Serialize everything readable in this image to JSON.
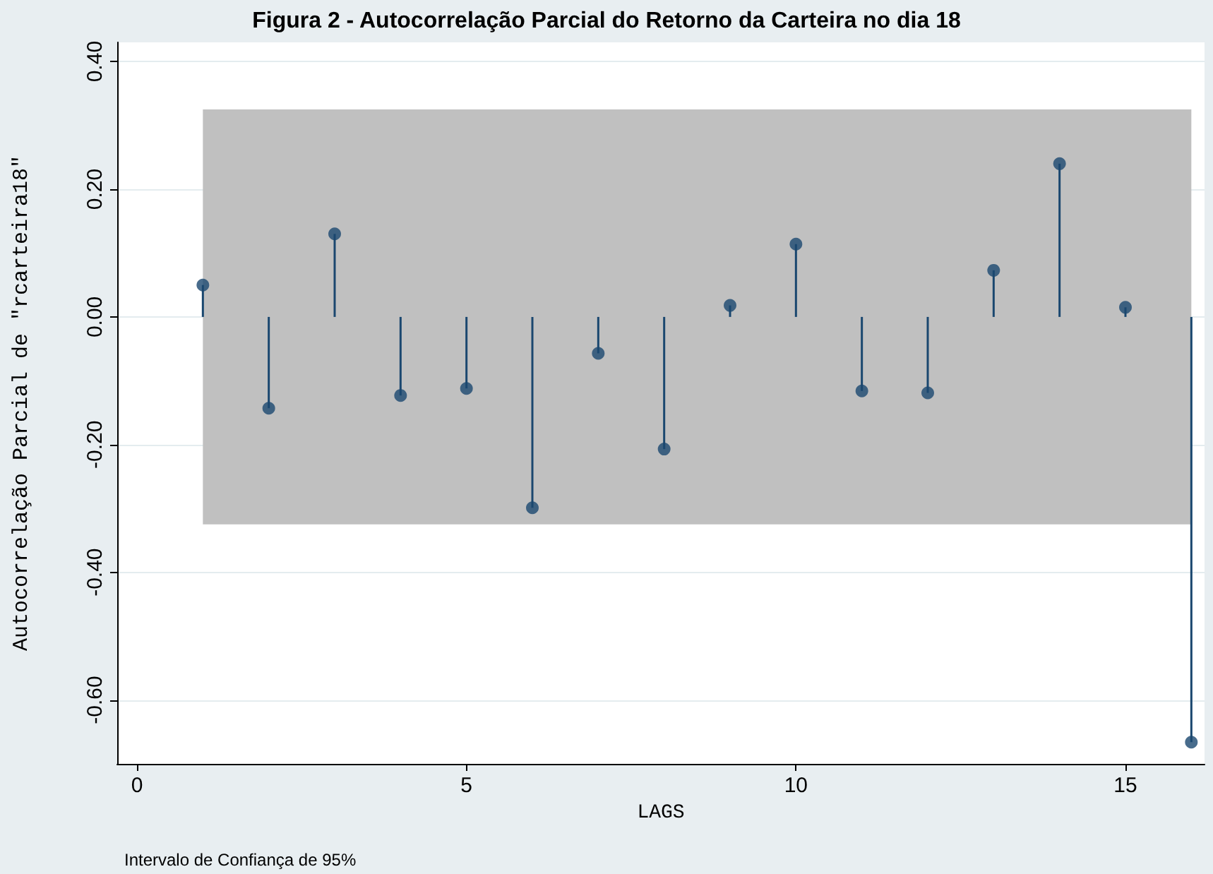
{
  "chart_data": {
    "type": "lollipop",
    "title": "Figura 2 - Autocorrelação Parcial do Retorno da Carteira no dia 18",
    "xlabel": "LAGS",
    "ylabel": "Autocorrelação Parcial de \"rcarteira18\"",
    "annotations": [
      "Intervalo de Confiança de 95%"
    ],
    "x": [
      1,
      2,
      3,
      4,
      5,
      6,
      7,
      8,
      9,
      10,
      11,
      12,
      13,
      14,
      15,
      16
    ],
    "series": [
      {
        "color": "#1a476f",
        "values": [
          0.05,
          -0.143,
          0.13,
          -0.123,
          -0.112,
          -0.299,
          -0.057,
          -0.207,
          0.018,
          0.114,
          -0.116,
          -0.119,
          0.073,
          0.24,
          0.015,
          -0.666
        ]
      }
    ],
    "bands": [
      {
        "axis": "y",
        "from": -0.325,
        "to": 0.325,
        "color": "#c0c0c0"
      }
    ],
    "xlim": [
      -0.3,
      16.2
    ],
    "xticks": [
      0,
      5,
      10,
      15
    ],
    "ylim": [
      -0.7,
      0.43
    ],
    "yticks": [
      {
        "value": -0.6,
        "label": "-0.60"
      },
      {
        "value": -0.4,
        "label": "-0.40"
      },
      {
        "value": -0.2,
        "label": "-0.20"
      },
      {
        "value": 0,
        "label": "0.00"
      },
      {
        "value": 0.2,
        "label": "0.20"
      },
      {
        "value": 0.4,
        "label": "0.40"
      }
    ],
    "grid": "y",
    "marker": "circle"
  }
}
